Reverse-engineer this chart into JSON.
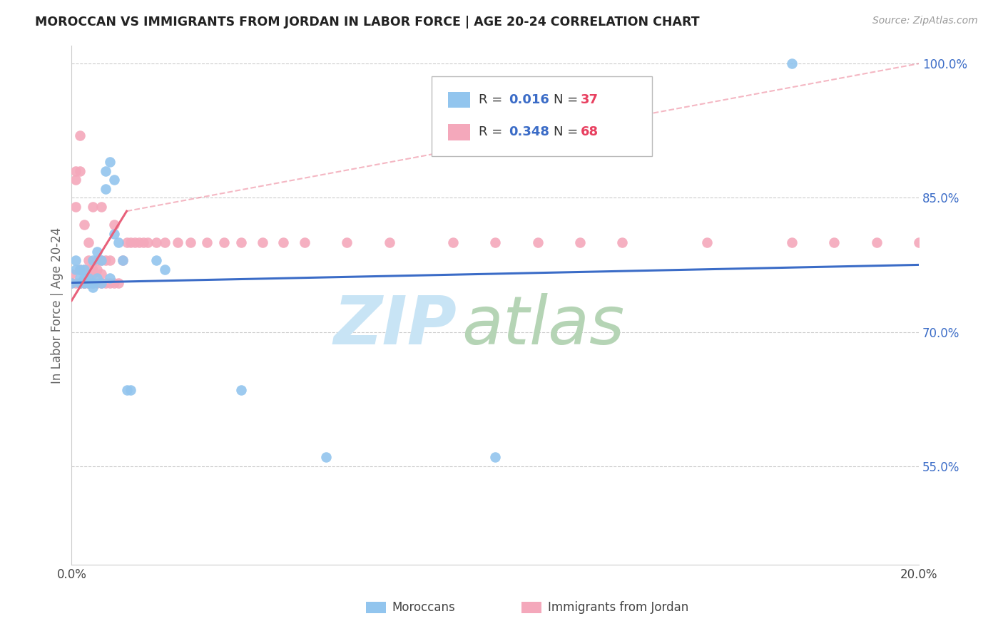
{
  "title": "MOROCCAN VS IMMIGRANTS FROM JORDAN IN LABOR FORCE | AGE 20-24 CORRELATION CHART",
  "source": "Source: ZipAtlas.com",
  "ylabel": "In Labor Force | Age 20-24",
  "xlim": [
    0.0,
    0.2
  ],
  "ylim": [
    0.44,
    1.02
  ],
  "yticks": [
    0.55,
    0.7,
    0.85,
    1.0
  ],
  "ytick_labels": [
    "55.0%",
    "70.0%",
    "85.0%",
    "100.0%"
  ],
  "xticks": [
    0.0,
    0.04,
    0.08,
    0.12,
    0.16,
    0.2
  ],
  "xtick_labels": [
    "0.0%",
    "",
    "",
    "",
    "",
    "20.0%"
  ],
  "blue_color": "#92C5EE",
  "pink_color": "#F4A8BB",
  "line_blue": "#3B6CC7",
  "line_pink": "#E8607A",
  "background_color": "#ffffff",
  "moroccans_x": [
    0.0,
    0.001,
    0.001,
    0.002,
    0.002,
    0.002,
    0.003,
    0.003,
    0.003,
    0.004,
    0.004,
    0.005,
    0.005,
    0.005,
    0.006,
    0.006,
    0.007,
    0.007,
    0.008,
    0.008,
    0.009,
    0.009,
    0.01,
    0.01,
    0.011,
    0.012,
    0.013,
    0.014,
    0.02,
    0.022,
    0.04,
    0.06,
    0.1,
    0.17
  ],
  "moroccans_y": [
    0.755,
    0.77,
    0.78,
    0.755,
    0.77,
    0.76,
    0.755,
    0.76,
    0.77,
    0.755,
    0.76,
    0.755,
    0.75,
    0.78,
    0.76,
    0.79,
    0.755,
    0.78,
    0.86,
    0.88,
    0.89,
    0.76,
    0.81,
    0.87,
    0.8,
    0.78,
    0.635,
    0.635,
    0.78,
    0.77,
    0.635,
    0.56,
    0.56,
    1.0
  ],
  "jordan_x": [
    0.0,
    0.0,
    0.001,
    0.001,
    0.001,
    0.001,
    0.002,
    0.002,
    0.002,
    0.002,
    0.002,
    0.003,
    0.003,
    0.003,
    0.003,
    0.004,
    0.004,
    0.004,
    0.004,
    0.004,
    0.005,
    0.005,
    0.005,
    0.005,
    0.005,
    0.006,
    0.006,
    0.006,
    0.007,
    0.007,
    0.007,
    0.007,
    0.008,
    0.008,
    0.009,
    0.009,
    0.01,
    0.01,
    0.011,
    0.012,
    0.013,
    0.014,
    0.015,
    0.016,
    0.017,
    0.018,
    0.02,
    0.022,
    0.025,
    0.028,
    0.032,
    0.036,
    0.04,
    0.045,
    0.05,
    0.055,
    0.065,
    0.075,
    0.09,
    0.1,
    0.11,
    0.12,
    0.13,
    0.15,
    0.17,
    0.18,
    0.19,
    0.2
  ],
  "jordan_y": [
    0.755,
    0.765,
    0.84,
    0.87,
    0.88,
    0.755,
    0.755,
    0.755,
    0.77,
    0.88,
    0.92,
    0.755,
    0.755,
    0.77,
    0.82,
    0.755,
    0.755,
    0.77,
    0.78,
    0.8,
    0.755,
    0.755,
    0.765,
    0.77,
    0.84,
    0.755,
    0.77,
    0.78,
    0.755,
    0.765,
    0.78,
    0.84,
    0.755,
    0.78,
    0.755,
    0.78,
    0.755,
    0.82,
    0.755,
    0.78,
    0.8,
    0.8,
    0.8,
    0.8,
    0.8,
    0.8,
    0.8,
    0.8,
    0.8,
    0.8,
    0.8,
    0.8,
    0.8,
    0.8,
    0.8,
    0.8,
    0.8,
    0.8,
    0.8,
    0.8,
    0.8,
    0.8,
    0.8,
    0.8,
    0.8,
    0.8,
    0.8,
    0.8
  ]
}
